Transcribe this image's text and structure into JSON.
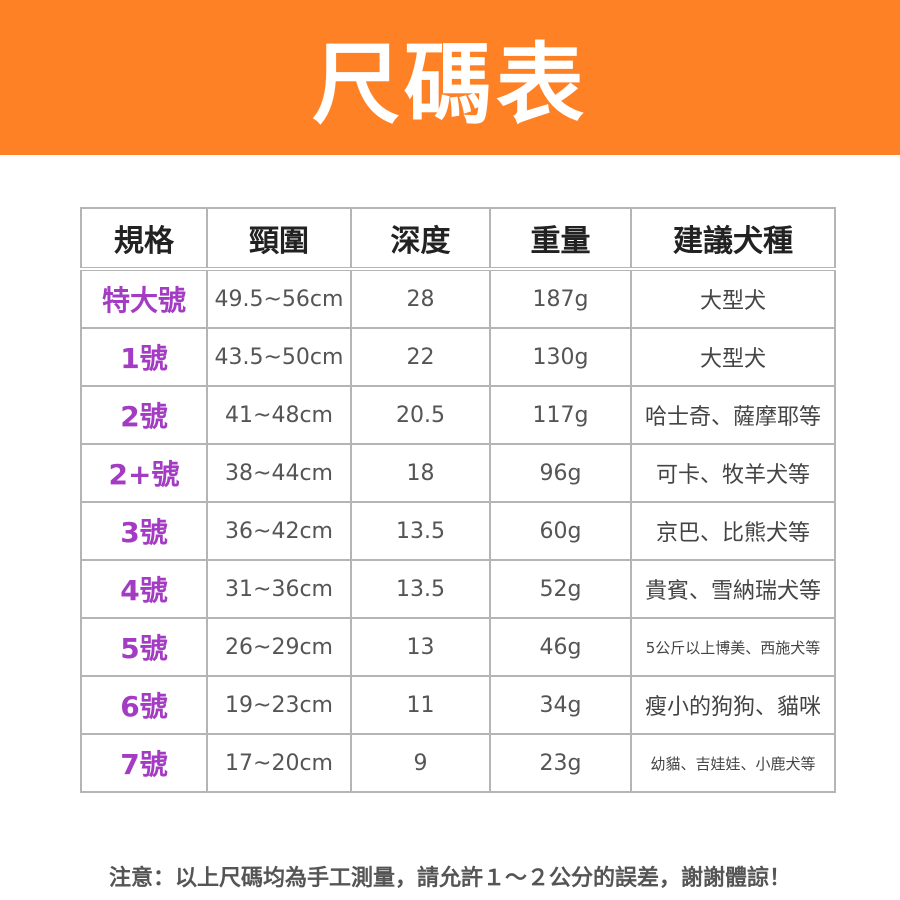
{
  "title": "尺碼表",
  "colors": {
    "banner": "#FF8125",
    "size_label": "#A43CC3"
  },
  "table": {
    "headers": [
      "規格",
      "頸圍",
      "深度",
      "重量",
      "建議犬種"
    ],
    "rows": [
      [
        "特大號",
        "49.5~56cm",
        "28",
        "187g",
        "大型犬"
      ],
      [
        "1號",
        "43.5~50cm",
        "22",
        "130g",
        "大型犬"
      ],
      [
        "2號",
        "41~48cm",
        "20.5",
        "117g",
        "哈士奇、薩摩耶等"
      ],
      [
        "2+號",
        "38~44cm",
        "18",
        "96g",
        "可卡、牧羊犬等"
      ],
      [
        "3號",
        "36~42cm",
        "13.5",
        "60g",
        "京巴、比熊犬等"
      ],
      [
        "4號",
        "31~36cm",
        "13.5",
        "52g",
        "貴賓、雪納瑞犬等"
      ],
      [
        "5號",
        "26~29cm",
        "13",
        "46g",
        "5公斤以上博美、西施犬等"
      ],
      [
        "6號",
        "19~23cm",
        "11",
        "34g",
        "瘦小的狗狗、貓咪"
      ],
      [
        "7號",
        "17~20cm",
        "9",
        "23g",
        "幼貓、吉娃娃、小鹿犬等"
      ]
    ]
  },
  "note": "注意：以上尺碼均為手工測量，請允許１～２公分的誤差，謝謝體諒！"
}
